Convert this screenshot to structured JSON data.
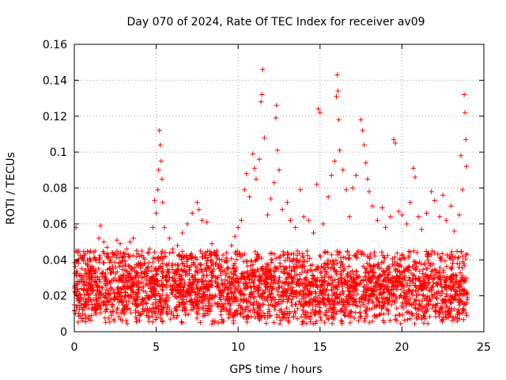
{
  "chart_data": {
    "type": "scatter",
    "title": "Day 070 of 2024, Rate Of TEC Index for receiver av09",
    "xlabel": "GPS time / hours",
    "ylabel": "ROTI / TECUs",
    "xlim": [
      0,
      25
    ],
    "ylim": [
      0,
      0.16
    ],
    "xticks": [
      0,
      5,
      10,
      15,
      20,
      25
    ],
    "xtick_labels": [
      "0",
      "5",
      "10",
      "15",
      "20",
      "25"
    ],
    "yticks": [
      0,
      0.02,
      0.04,
      0.06,
      0.08,
      0.1,
      0.12,
      0.14,
      0.16
    ],
    "ytick_labels": [
      "0",
      "0.02",
      "0.04",
      "0.06",
      "0.08",
      "0.1",
      "0.12",
      "0.14",
      "0.16"
    ],
    "grid": true,
    "marker": "+",
    "color": "#ff0000",
    "series": [
      {
        "name": "ROTI",
        "points": [
          [
            0.0,
            0.015
          ],
          [
            0.1,
            0.058
          ],
          [
            0.2,
            0.044
          ],
          [
            0.3,
            0.021
          ],
          [
            0.5,
            0.03
          ],
          [
            0.7,
            0.038
          ],
          [
            0.9,
            0.033
          ],
          [
            1.0,
            0.045
          ],
          [
            1.2,
            0.041
          ],
          [
            1.5,
            0.052
          ],
          [
            1.6,
            0.059
          ],
          [
            1.8,
            0.05
          ],
          [
            2.0,
            0.047
          ],
          [
            2.2,
            0.04
          ],
          [
            2.4,
            0.043
          ],
          [
            2.6,
            0.051
          ],
          [
            2.8,
            0.049
          ],
          [
            3.0,
            0.044
          ],
          [
            3.2,
            0.046
          ],
          [
            3.4,
            0.05
          ],
          [
            3.6,
            0.052
          ],
          [
            3.8,
            0.045
          ],
          [
            4.0,
            0.042
          ],
          [
            4.3,
            0.038
          ],
          [
            4.6,
            0.046
          ],
          [
            4.8,
            0.058
          ],
          [
            4.9,
            0.073
          ],
          [
            5.0,
            0.066
          ],
          [
            5.1,
            0.079
          ],
          [
            5.15,
            0.09
          ],
          [
            5.2,
            0.112
          ],
          [
            5.25,
            0.104
          ],
          [
            5.3,
            0.095
          ],
          [
            5.35,
            0.085
          ],
          [
            5.4,
            0.072
          ],
          [
            5.5,
            0.058
          ],
          [
            5.8,
            0.052
          ],
          [
            6.0,
            0.046
          ],
          [
            6.3,
            0.048
          ],
          [
            6.6,
            0.055
          ],
          [
            6.9,
            0.06
          ],
          [
            7.2,
            0.066
          ],
          [
            7.5,
            0.072
          ],
          [
            7.6,
            0.068
          ],
          [
            7.8,
            0.062
          ],
          [
            8.1,
            0.061
          ],
          [
            8.4,
            0.049
          ],
          [
            8.7,
            0.045
          ],
          [
            9.0,
            0.04
          ],
          [
            9.3,
            0.044
          ],
          [
            9.6,
            0.048
          ],
          [
            9.8,
            0.053
          ],
          [
            10.0,
            0.058
          ],
          [
            10.2,
            0.062
          ],
          [
            10.4,
            0.079
          ],
          [
            10.5,
            0.088
          ],
          [
            10.7,
            0.075
          ],
          [
            10.9,
            0.099
          ],
          [
            11.0,
            0.091
          ],
          [
            11.1,
            0.085
          ],
          [
            11.3,
            0.096
          ],
          [
            11.4,
            0.128
          ],
          [
            11.45,
            0.132
          ],
          [
            11.5,
            0.146
          ],
          [
            11.6,
            0.108
          ],
          [
            11.8,
            0.065
          ],
          [
            12.0,
            0.074
          ],
          [
            12.2,
            0.083
          ],
          [
            12.3,
            0.119
          ],
          [
            12.35,
            0.126
          ],
          [
            12.4,
            0.101
          ],
          [
            12.5,
            0.09
          ],
          [
            12.7,
            0.068
          ],
          [
            13.0,
            0.072
          ],
          [
            13.2,
            0.062
          ],
          [
            13.5,
            0.058
          ],
          [
            13.8,
            0.079
          ],
          [
            14.0,
            0.064
          ],
          [
            14.3,
            0.062
          ],
          [
            14.6,
            0.055
          ],
          [
            14.8,
            0.082
          ],
          [
            14.9,
            0.124
          ],
          [
            15.0,
            0.122
          ],
          [
            15.2,
            0.06
          ],
          [
            15.5,
            0.075
          ],
          [
            15.7,
            0.087
          ],
          [
            15.9,
            0.095
          ],
          [
            16.0,
            0.131
          ],
          [
            16.05,
            0.143
          ],
          [
            16.1,
            0.134
          ],
          [
            16.15,
            0.118
          ],
          [
            16.2,
            0.101
          ],
          [
            16.4,
            0.09
          ],
          [
            16.6,
            0.079
          ],
          [
            16.8,
            0.064
          ],
          [
            17.0,
            0.08
          ],
          [
            17.2,
            0.087
          ],
          [
            17.5,
            0.118
          ],
          [
            17.6,
            0.112
          ],
          [
            17.7,
            0.104
          ],
          [
            17.8,
            0.094
          ],
          [
            17.9,
            0.085
          ],
          [
            18.0,
            0.078
          ],
          [
            18.2,
            0.07
          ],
          [
            18.5,
            0.062
          ],
          [
            18.8,
            0.069
          ],
          [
            19.0,
            0.058
          ],
          [
            19.3,
            0.064
          ],
          [
            19.5,
            0.107
          ],
          [
            19.6,
            0.105
          ],
          [
            19.8,
            0.067
          ],
          [
            20.0,
            0.065
          ],
          [
            20.3,
            0.06
          ],
          [
            20.5,
            0.072
          ],
          [
            20.7,
            0.091
          ],
          [
            20.8,
            0.086
          ],
          [
            21.0,
            0.064
          ],
          [
            21.2,
            0.057
          ],
          [
            21.5,
            0.066
          ],
          [
            21.8,
            0.078
          ],
          [
            22.0,
            0.073
          ],
          [
            22.3,
            0.064
          ],
          [
            22.5,
            0.076
          ],
          [
            22.7,
            0.062
          ],
          [
            23.0,
            0.07
          ],
          [
            23.2,
            0.056
          ],
          [
            23.5,
            0.065
          ],
          [
            23.6,
            0.098
          ],
          [
            23.7,
            0.079
          ],
          [
            23.8,
            0.132
          ],
          [
            23.85,
            0.122
          ],
          [
            23.9,
            0.107
          ],
          [
            23.95,
            0.092
          ]
        ],
        "band": {
          "description_values": "dense background cloud of ROTI values",
          "hours_start": 0,
          "hours_end": 24,
          "samples_per_hour": 130,
          "typical_min": 0.004,
          "typical_max": 0.045
        }
      }
    ]
  }
}
